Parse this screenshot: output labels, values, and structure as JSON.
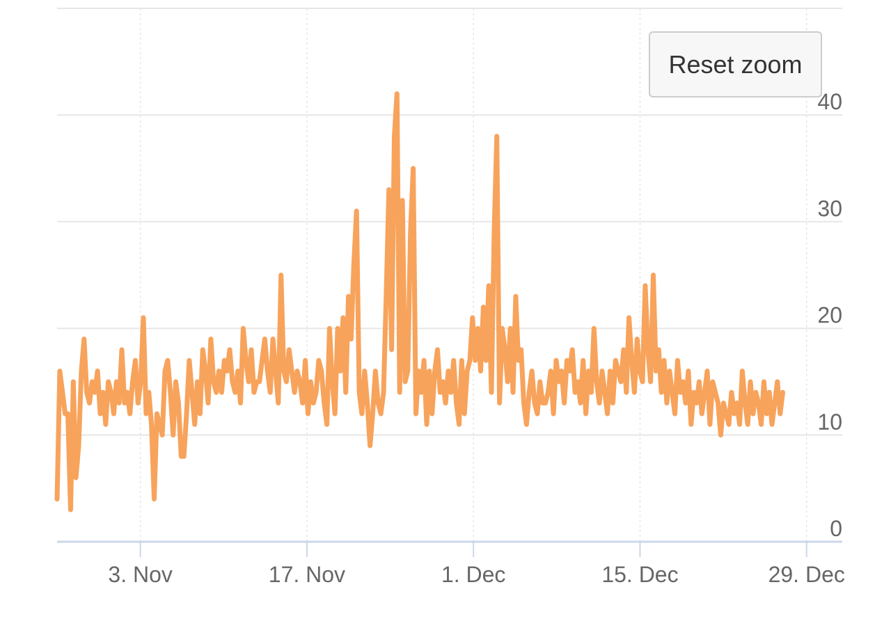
{
  "reset_zoom": {
    "label": "Reset zoom"
  },
  "colors": {
    "series": "#F7A35C",
    "grid": "#e6e6e6",
    "axis_line": "#ccd6eb",
    "label": "#666666"
  },
  "chart_data": {
    "type": "line",
    "title": "",
    "xlabel": "",
    "ylabel": "",
    "x_start": "2023-10-27T00:00",
    "x_end": "2024-01-01T00:00",
    "xlim": [
      "2023-10-27",
      "2024-01-01"
    ],
    "ylim": [
      0,
      50
    ],
    "grid": {
      "x": true,
      "y": true
    },
    "yaxis_side": "right",
    "x_ticks": [
      {
        "date": "2023-11-03",
        "label": "3. Nov"
      },
      {
        "date": "2023-11-17",
        "label": "17. Nov"
      },
      {
        "date": "2023-12-01",
        "label": "1. Dec"
      },
      {
        "date": "2023-12-15",
        "label": "15. Dec"
      },
      {
        "date": "2023-12-29",
        "label": "29. Dec"
      }
    ],
    "y_ticks": [
      {
        "value": 0,
        "label": "0"
      },
      {
        "value": 10,
        "label": "10"
      },
      {
        "value": 20,
        "label": "20"
      },
      {
        "value": 30,
        "label": "30"
      },
      {
        "value": 40,
        "label": "40"
      }
    ],
    "series": [
      {
        "color": "#F7A35C",
        "values": [
          4,
          16,
          14,
          12,
          12,
          3,
          15,
          6,
          9,
          16,
          19,
          14,
          13,
          15,
          14,
          16,
          12,
          14,
          11,
          15,
          14,
          12,
          15,
          13,
          18,
          13,
          14,
          12,
          15,
          17,
          13,
          15,
          21,
          12,
          14,
          11,
          4,
          12,
          11,
          10,
          16,
          17,
          14,
          10,
          15,
          13,
          8,
          8,
          12,
          17,
          14,
          11,
          15,
          12,
          18,
          16,
          13,
          19,
          15,
          14,
          16,
          14,
          17,
          16,
          18,
          15,
          14,
          16,
          13,
          20,
          17,
          15,
          18,
          14,
          15,
          15,
          17,
          19,
          16,
          14,
          19,
          16,
          13,
          25,
          16,
          15,
          18,
          16,
          14,
          16,
          15,
          13,
          17,
          12,
          15,
          13,
          14,
          17,
          16,
          13,
          11,
          20,
          15,
          12,
          20,
          16,
          21,
          14,
          23,
          19,
          26,
          31,
          14,
          12,
          16,
          13,
          9,
          12,
          16,
          13,
          12,
          14,
          23,
          33,
          18,
          38,
          42,
          14,
          32,
          15,
          16,
          29,
          35,
          12,
          16,
          14,
          17,
          11,
          16,
          12,
          16,
          18,
          14,
          15,
          13,
          16,
          14,
          17,
          13,
          11,
          17,
          12,
          16,
          17,
          21,
          17,
          20,
          16,
          22,
          17,
          24,
          14,
          29,
          38,
          13,
          20,
          18,
          15,
          20,
          14,
          23,
          17,
          18,
          13,
          11,
          14,
          16,
          13,
          12,
          15,
          13,
          13,
          14,
          16,
          12,
          17,
          15,
          16,
          13,
          17,
          16,
          18,
          14,
          15,
          13,
          17,
          12,
          16,
          14,
          20,
          15,
          13,
          16,
          14,
          12,
          16,
          13,
          17,
          16,
          15,
          18,
          14,
          21,
          17,
          14,
          19,
          16,
          15,
          24,
          18,
          15,
          25,
          16,
          18,
          14,
          17,
          13,
          16,
          14,
          12,
          17,
          14,
          15,
          13,
          16,
          11,
          14,
          13,
          15,
          12,
          14,
          16,
          11,
          15,
          14,
          13,
          10,
          13,
          12,
          11,
          14,
          12,
          13,
          11,
          16,
          13,
          11,
          15,
          12,
          14,
          13,
          11,
          15,
          12,
          14,
          11,
          13,
          15,
          12,
          14
        ]
      }
    ]
  }
}
